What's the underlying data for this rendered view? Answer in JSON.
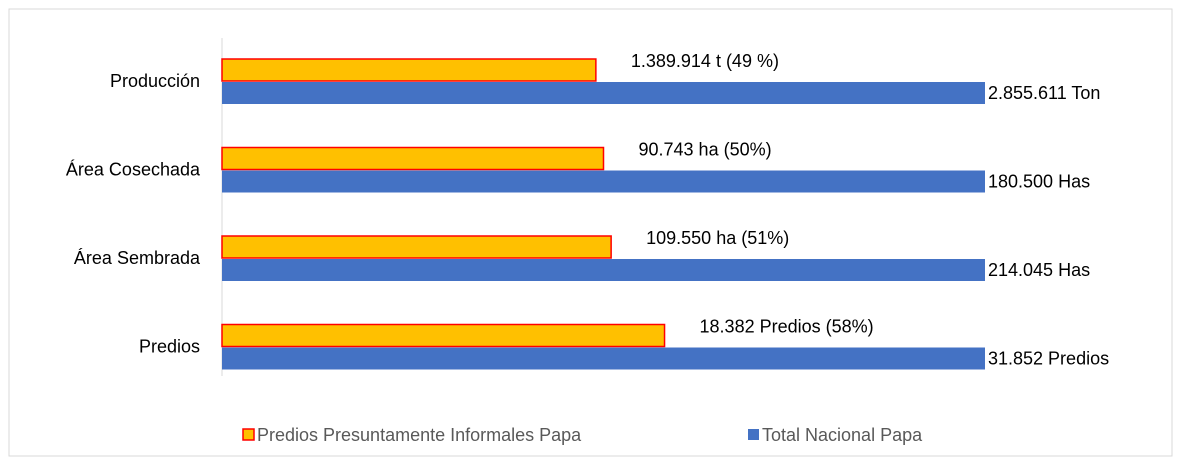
{
  "chart_data": {
    "type": "bar",
    "orientation": "horizontal",
    "categories": [
      "Producción",
      "Área Cosechada",
      "Área Sembrada",
      "Predios"
    ],
    "series": [
      {
        "name": "Predios Presuntamente Informales Papa",
        "color": "#FFC000",
        "edge_color": "#FF0000",
        "values": [
          49,
          50,
          51,
          58
        ],
        "value_labels": [
          "1.389.914  t (49 %)",
          "90.743 ha (50%)",
          "109.550  ha (51%)",
          "18.382 Predios (58%)"
        ]
      },
      {
        "name": "Total Nacional Papa",
        "color": "#4472C4",
        "values": [
          100,
          100,
          100,
          100
        ],
        "value_labels": [
          "2.855.611 Ton",
          "180.500 Has",
          "214.045  Has",
          "31.852 Predios"
        ]
      }
    ],
    "xlim": [
      0,
      100
    ],
    "legend": "bottom"
  }
}
